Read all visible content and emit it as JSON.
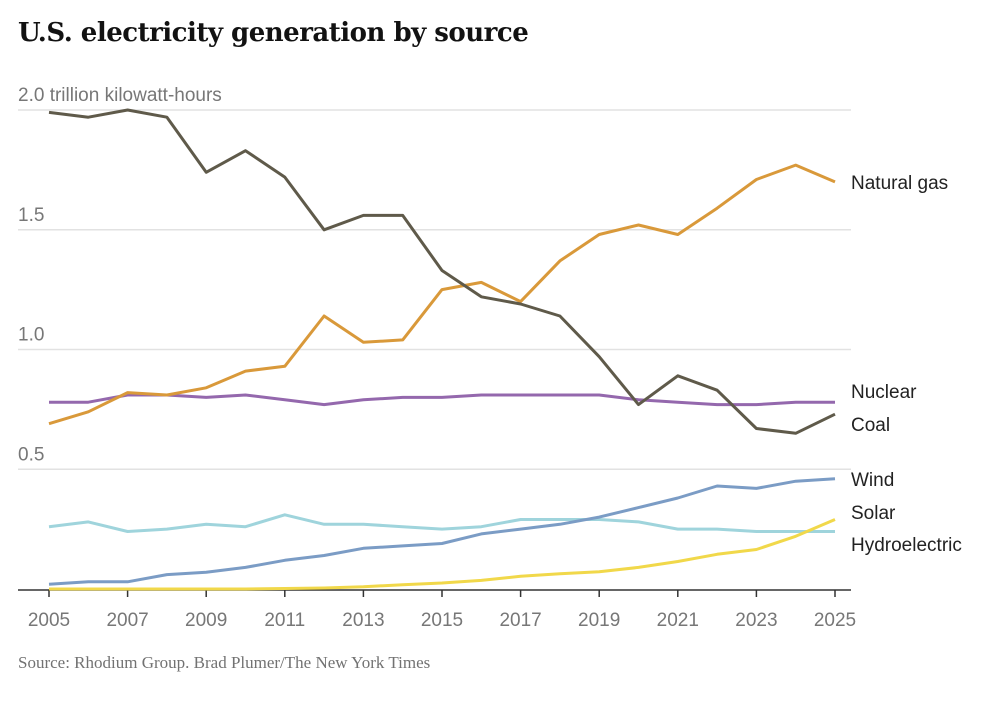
{
  "chart_data": {
    "type": "line",
    "title": "U.S. electricity generation by source",
    "ylabel": "trillion kilowatt-hours",
    "ylim": [
      0,
      2.0
    ],
    "yticks": [
      {
        "value": 0.5,
        "label": "0.5"
      },
      {
        "value": 1.0,
        "label": "1.0"
      },
      {
        "value": 1.5,
        "label": "1.5"
      },
      {
        "value": 2.0,
        "label": "2.0 trillion kilowatt-hours"
      }
    ],
    "xlim": [
      2005,
      2025
    ],
    "xticks": [
      2005,
      2007,
      2009,
      2011,
      2013,
      2015,
      2017,
      2019,
      2021,
      2023,
      2025
    ],
    "grid": true,
    "legend": "direct labels at right",
    "x": [
      2005,
      2006,
      2007,
      2008,
      2009,
      2010,
      2011,
      2012,
      2013,
      2014,
      2015,
      2016,
      2017,
      2018,
      2019,
      2020,
      2021,
      2022,
      2023,
      2024,
      2025
    ],
    "series": [
      {
        "name": "Coal",
        "color": "#5f5a4a",
        "values": [
          1.99,
          1.97,
          2.0,
          1.97,
          1.74,
          1.83,
          1.72,
          1.5,
          1.56,
          1.56,
          1.33,
          1.22,
          1.19,
          1.14,
          0.97,
          0.77,
          0.89,
          0.83,
          0.67,
          0.65,
          0.73
        ]
      },
      {
        "name": "Natural gas",
        "color": "#d9993a",
        "values": [
          0.69,
          0.74,
          0.82,
          0.81,
          0.84,
          0.91,
          0.93,
          1.14,
          1.03,
          1.04,
          1.25,
          1.28,
          1.2,
          1.37,
          1.48,
          1.52,
          1.48,
          1.59,
          1.71,
          1.77,
          1.7
        ]
      },
      {
        "name": "Nuclear",
        "color": "#9468ad",
        "values": [
          0.78,
          0.78,
          0.81,
          0.81,
          0.8,
          0.81,
          0.79,
          0.77,
          0.79,
          0.8,
          0.8,
          0.81,
          0.81,
          0.81,
          0.81,
          0.79,
          0.78,
          0.77,
          0.77,
          0.78,
          0.78
        ]
      },
      {
        "name": "Hydroelectric",
        "color": "#9fd4dc",
        "values": [
          0.26,
          0.28,
          0.24,
          0.25,
          0.27,
          0.26,
          0.31,
          0.27,
          0.27,
          0.26,
          0.25,
          0.26,
          0.29,
          0.29,
          0.29,
          0.28,
          0.25,
          0.25,
          0.24,
          0.24,
          0.24
        ]
      },
      {
        "name": "Wind",
        "color": "#7b9cc5",
        "values": [
          0.02,
          0.03,
          0.03,
          0.06,
          0.07,
          0.09,
          0.12,
          0.14,
          0.17,
          0.18,
          0.19,
          0.23,
          0.25,
          0.27,
          0.3,
          0.34,
          0.38,
          0.43,
          0.42,
          0.45,
          0.46
        ]
      },
      {
        "name": "Solar",
        "color": "#f1d84a",
        "values": [
          0.0,
          0.0,
          0.0,
          0.0,
          0.0,
          0.0,
          0.002,
          0.004,
          0.009,
          0.018,
          0.025,
          0.036,
          0.053,
          0.064,
          0.072,
          0.09,
          0.115,
          0.145,
          0.165,
          0.22,
          0.29
        ]
      }
    ],
    "label_order": [
      "Natural gas",
      "Nuclear",
      "Coal",
      "Wind",
      "Solar",
      "Hydroelectric"
    ]
  },
  "source": "Source: Rhodium Group.  Brad Plumer/The New York Times"
}
